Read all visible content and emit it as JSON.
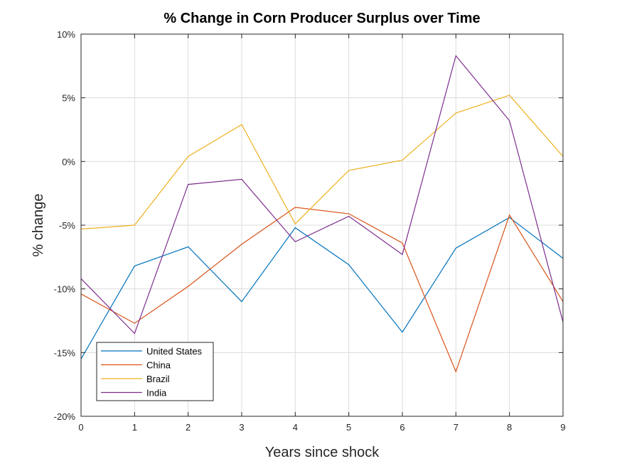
{
  "chart_data": {
    "type": "line",
    "title": "% Change in Corn Producer Surplus over Time",
    "xlabel": "Years since shock",
    "ylabel": "% change",
    "xlim": [
      0,
      9
    ],
    "ylim": [
      -20,
      10
    ],
    "x_ticks": [
      0,
      1,
      2,
      3,
      4,
      5,
      6,
      7,
      8,
      9
    ],
    "x_tick_labels": [
      "0",
      "1",
      "2",
      "3",
      "4",
      "5",
      "6",
      "7",
      "8",
      "9"
    ],
    "y_ticks": [
      -20,
      -15,
      -10,
      -5,
      0,
      5,
      10
    ],
    "y_tick_labels": [
      "-20%",
      "-15%",
      "-10%",
      "-5%",
      "0%",
      "5%",
      "10%"
    ],
    "grid": true,
    "legend_position": "bottom-left",
    "x": [
      0,
      1,
      2,
      3,
      4,
      5,
      6,
      7,
      8,
      9
    ],
    "series": [
      {
        "name": "United States",
        "color": "#0072BD",
        "values": [
          -15.5,
          -8.2,
          -6.7,
          -11.0,
          -5.2,
          -8.1,
          -13.4,
          -6.8,
          -4.4,
          -7.6
        ]
      },
      {
        "name": "China",
        "color": "#D95319",
        "values": [
          -10.4,
          -12.7,
          -9.8,
          -6.5,
          -3.6,
          -4.1,
          -6.4,
          -16.5,
          -4.2,
          -11.0
        ]
      },
      {
        "name": "Brazil",
        "color": "#EDB120",
        "values": [
          -5.3,
          -5.0,
          0.4,
          2.9,
          -4.9,
          -0.7,
          0.1,
          3.8,
          5.2,
          0.4
        ]
      },
      {
        "name": "India",
        "color": "#7E2F8E",
        "values": [
          -9.2,
          -13.5,
          -1.8,
          -1.4,
          -6.3,
          -4.3,
          -7.3,
          8.3,
          3.2,
          -12.6
        ]
      }
    ]
  }
}
